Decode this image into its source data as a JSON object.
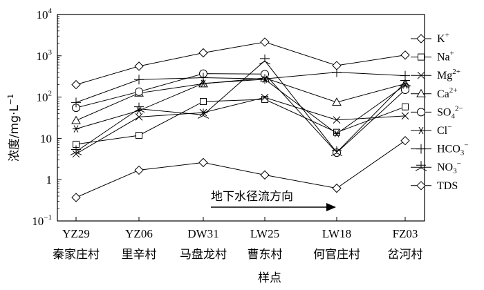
{
  "chart_data": {
    "type": "line",
    "y_scale": "log",
    "ylim": [
      0.1,
      10000
    ],
    "y_ticks": [
      {
        "base": "10",
        "exp": "−1",
        "value": 0.1
      },
      {
        "base": "1",
        "exp": "",
        "value": 1
      },
      {
        "base": "10",
        "exp": "",
        "value": 10
      },
      {
        "base": "10",
        "exp": "2",
        "value": 100
      },
      {
        "base": "10",
        "exp": "3",
        "value": 1000
      },
      {
        "base": "10",
        "exp": "4",
        "value": 10000
      }
    ],
    "categories": [
      "YZ29",
      "YZ06",
      "DW31",
      "LW25",
      "LW18",
      "FZ03"
    ],
    "category_names": [
      "秦家庄村",
      "里辛村",
      "马盘龙村",
      "曹东村",
      "何官庄村",
      "岔河村"
    ],
    "xlabel": "样点",
    "ylabel": "浓度/mg·L",
    "ylabel_exp": "−1",
    "annotation": "地下水径流方向",
    "grid": false,
    "legend_position": "right",
    "series": [
      {
        "name": "K",
        "sup": "+",
        "marker": "diamond",
        "values": [
          0.37,
          1.7,
          2.6,
          1.3,
          0.62,
          8.8
        ]
      },
      {
        "name": "Na",
        "sup": "+",
        "marker": "square",
        "values": [
          7.2,
          11.8,
          78,
          88,
          14,
          58
        ]
      },
      {
        "name": "Mg",
        "sup": "2+",
        "marker": "x",
        "values": [
          4.2,
          33,
          42,
          98,
          28,
          35
        ]
      },
      {
        "name": "Ca",
        "sup": "2+",
        "marker": "triangle",
        "values": [
          27,
          125,
          210,
          290,
          75,
          210
        ]
      },
      {
        "name": "SO",
        "sub": "4",
        "sup": "2−",
        "marker": "circle",
        "values": [
          55,
          135,
          370,
          360,
          4.5,
          150
        ]
      },
      {
        "name": "Cl",
        "sup": "−",
        "marker": "asterisk",
        "values": [
          17,
          47,
          215,
          270,
          13,
          195
        ]
      },
      {
        "name": "HCO",
        "sub": "3",
        "sup": "−",
        "marker": "plus",
        "values": [
          74,
          265,
          295,
          275,
          400,
          330
        ]
      },
      {
        "name": "NO",
        "sub": "3",
        "sup": "−",
        "marker": "star",
        "values": [
          4.8,
          52,
          37,
          760,
          4.6,
          225
        ]
      },
      {
        "name": "TDS",
        "sup": "",
        "marker": "diamond",
        "values": [
          200,
          560,
          1180,
          2150,
          580,
          1040
        ]
      }
    ]
  }
}
